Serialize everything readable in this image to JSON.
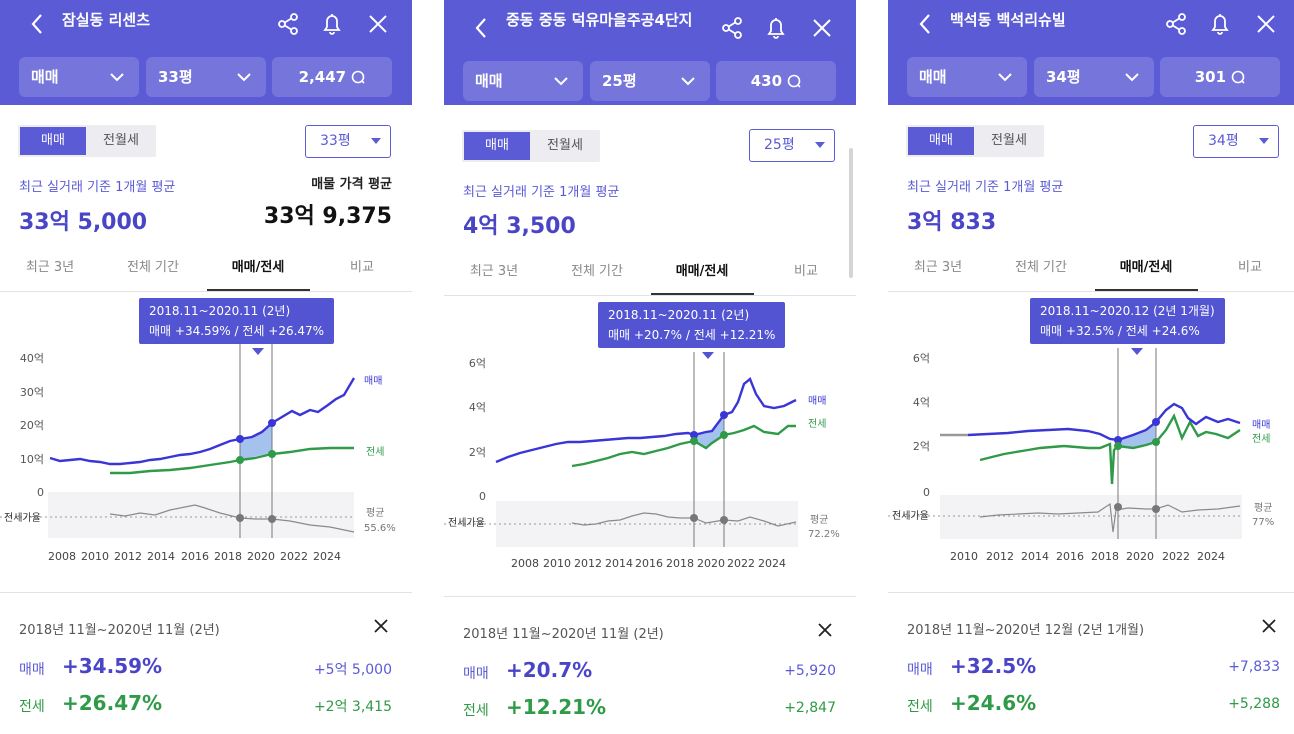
{
  "panels": [
    {
      "title": "잠실동 리센츠",
      "trade_type": "매매",
      "area": "33평",
      "listing_count": "2,447",
      "seg_on": "매매",
      "seg_off": "전월세",
      "area_select": "33평",
      "avg_label": "최근 실거래 기준 1개월 평균",
      "avg_value": "33억 5,000",
      "listing_avg_label": "매물 가격 평균",
      "listing_avg_value": "33억 9,375",
      "tabs": [
        "최근 3년",
        "전체 기간",
        "매매/전세",
        "비교"
      ],
      "tooltip_period": "2018.11~2020.11 (2년)",
      "tooltip_change": "매매 +34.59%  /  전세 +26.47%",
      "y_ticks": [
        "40억",
        "30억",
        "20억",
        "10억",
        "0"
      ],
      "x_ticks": [
        "2008",
        "2010",
        "2012",
        "2014",
        "2016",
        "2018",
        "2020",
        "2022",
        "2024"
      ],
      "sale_series_label": "매매",
      "jeonse_series_label": "전세",
      "ratio_label": "전세가율",
      "ratio_avg_label": "평균",
      "ratio_avg_value": "55.6%",
      "footer_period": "2018년 11월~2020년 11월 (2년)",
      "footer_sale_label": "매매",
      "footer_sale_pct": "+34.59%",
      "footer_sale_amt": "+5억 5,000",
      "footer_jeonse_label": "전세",
      "footer_jeonse_pct": "+26.47%",
      "footer_jeonse_amt": "+2억 3,415"
    },
    {
      "title": "중동 중동 덕유마을주공4단지",
      "trade_type": "매매",
      "area": "25평",
      "listing_count": "430",
      "seg_on": "매매",
      "seg_off": "전월세",
      "area_select": "25평",
      "avg_label": "최근 실거래 기준 1개월 평균",
      "avg_value": "4억 3,500",
      "listing_avg_label": "",
      "listing_avg_value": "",
      "tabs": [
        "최근 3년",
        "전체 기간",
        "매매/전세",
        "비교"
      ],
      "tooltip_period": "2018.11~2020.11 (2년)",
      "tooltip_change": "매매 +20.7%  /  전세 +12.21%",
      "y_ticks": [
        "6억",
        "4억",
        "2억",
        "0"
      ],
      "x_ticks": [
        "2008",
        "2010",
        "2012",
        "2014",
        "2016",
        "2018",
        "2020",
        "2022",
        "2024"
      ],
      "sale_series_label": "매매",
      "jeonse_series_label": "전세",
      "ratio_label": "전세가율",
      "ratio_avg_label": "평균",
      "ratio_avg_value": "72.2%",
      "footer_period": "2018년 11월~2020년 11월 (2년)",
      "footer_sale_label": "매매",
      "footer_sale_pct": "+20.7%",
      "footer_sale_amt": "+5,920",
      "footer_jeonse_label": "전세",
      "footer_jeonse_pct": "+12.21%",
      "footer_jeonse_amt": "+2,847"
    },
    {
      "title": "백석동 백석리슈빌",
      "trade_type": "매매",
      "area": "34평",
      "listing_count": "301",
      "seg_on": "매매",
      "seg_off": "전월세",
      "area_select": "34평",
      "avg_label": "최근 실거래 기준 1개월 평균",
      "avg_value": "3억 833",
      "listing_avg_label": "",
      "listing_avg_value": "",
      "tabs": [
        "최근 3년",
        "전체 기간",
        "매매/전세",
        "비교"
      ],
      "tooltip_period": "2018.11~2020.12 (2년 1개월)",
      "tooltip_change": "매매 +32.5%  /  전세 +24.6%",
      "y_ticks": [
        "6억",
        "4억",
        "2억",
        "0"
      ],
      "x_ticks": [
        "2010",
        "2012",
        "2014",
        "2016",
        "2018",
        "2020",
        "2022",
        "2024"
      ],
      "sale_series_label": "매매",
      "jeonse_series_label": "전세",
      "ratio_label": "전세가율",
      "ratio_avg_label": "평균",
      "ratio_avg_value": "77%",
      "footer_period": "2018년 11월~2020년 12월 (2년 1개월)",
      "footer_sale_label": "매매",
      "footer_sale_pct": "+32.5%",
      "footer_sale_amt": "+7,833",
      "footer_jeonse_label": "전세",
      "footer_jeonse_pct": "+24.6%",
      "footer_jeonse_amt": "+5,288"
    }
  ],
  "colors": {
    "accent": "#5b5bd6",
    "sale": "#3a35d6",
    "jeonse": "#2f9a48",
    "ratio": "#8a8a8a"
  }
}
